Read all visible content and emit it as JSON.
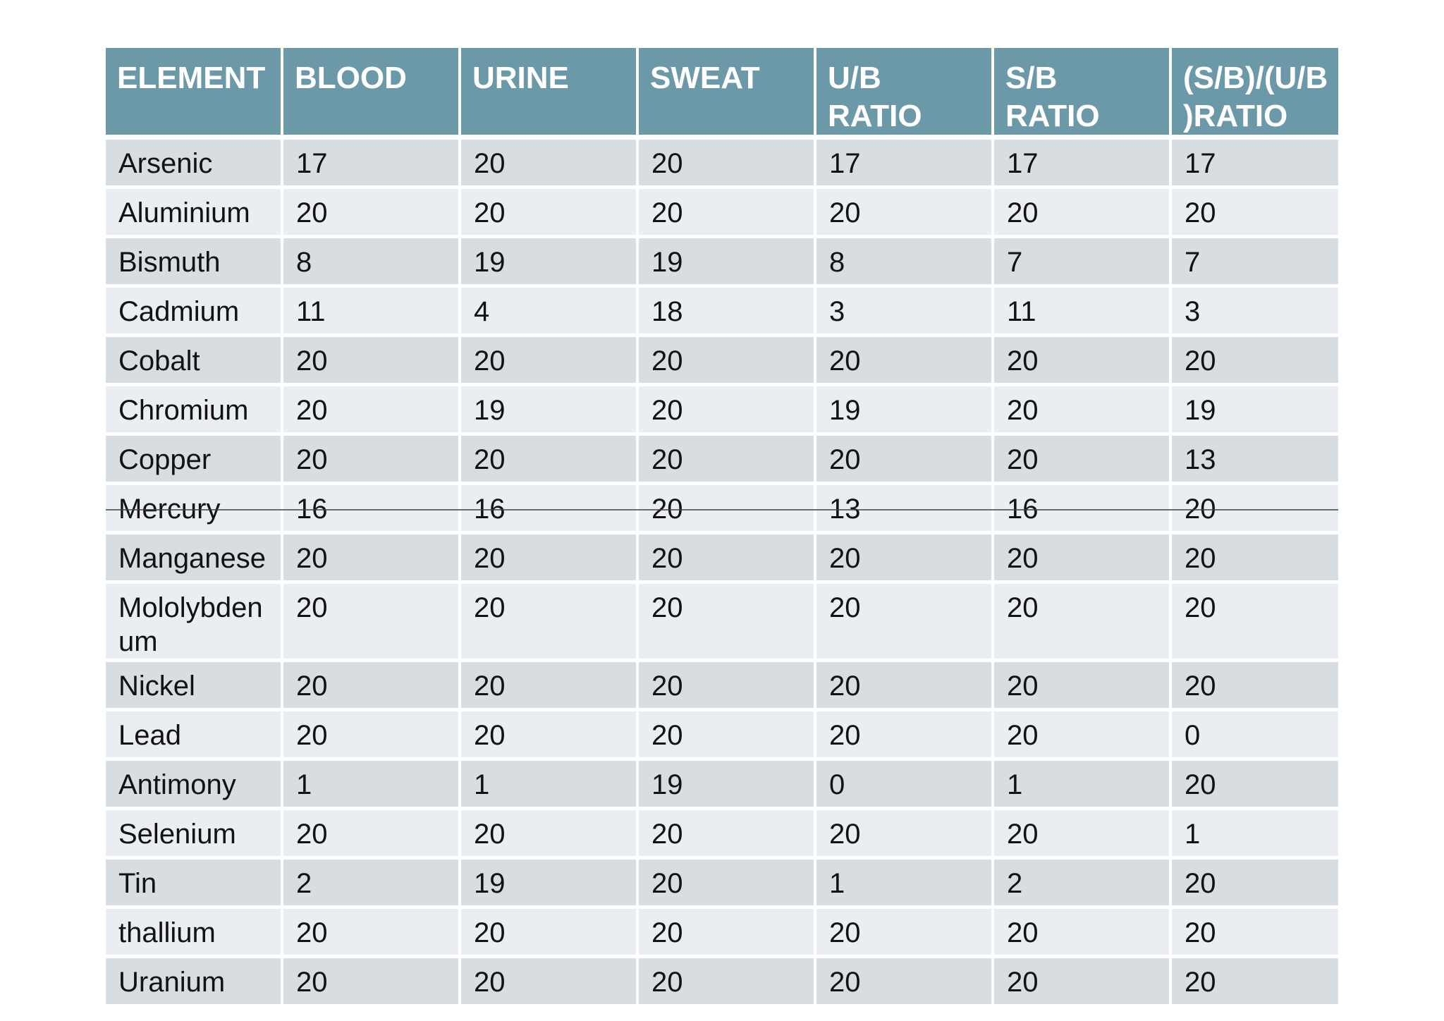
{
  "colors": {
    "header_bg": "#6b99a8",
    "header_text": "#ffffff",
    "row_dark": "#d7dde0",
    "row_light": "#eaedf2",
    "strike_line": "#3f3f3f",
    "page_bg": "#ffffff"
  },
  "table": {
    "headers": [
      "ELEMENT",
      "BLOOD",
      "URINE",
      "SWEAT",
      "U/B\nRATIO",
      "S/B\nRATIO",
      "(S/B)/(U/B\n)RATIO"
    ],
    "strikethrough_row": "Mercury",
    "rows": [
      {
        "element": "Arsenic",
        "blood": "17",
        "urine": "20",
        "sweat": "20",
        "ub_ratio": "17",
        "sb_ratio": "17",
        "sbub_ratio": "17"
      },
      {
        "element": "Aluminium",
        "blood": "20",
        "urine": "20",
        "sweat": "20",
        "ub_ratio": "20",
        "sb_ratio": "20",
        "sbub_ratio": "20"
      },
      {
        "element": "Bismuth",
        "blood": "8",
        "urine": "19",
        "sweat": "19",
        "ub_ratio": "8",
        "sb_ratio": "7",
        "sbub_ratio": "7"
      },
      {
        "element": "Cadmium",
        "blood": "11",
        "urine": "4",
        "sweat": "18",
        "ub_ratio": "3",
        "sb_ratio": "11",
        "sbub_ratio": "3"
      },
      {
        "element": "Cobalt",
        "blood": "20",
        "urine": "20",
        "sweat": "20",
        "ub_ratio": "20",
        "sb_ratio": "20",
        "sbub_ratio": "20"
      },
      {
        "element": "Chromium",
        "blood": "20",
        "urine": "19",
        "sweat": "20",
        "ub_ratio": "19",
        "sb_ratio": "20",
        "sbub_ratio": "19"
      },
      {
        "element": "Copper",
        "blood": "20",
        "urine": "20",
        "sweat": "20",
        "ub_ratio": "20",
        "sb_ratio": "20",
        "sbub_ratio": "13"
      },
      {
        "element": "Mercury",
        "blood": "16",
        "urine": "16",
        "sweat": "20",
        "ub_ratio": "13",
        "sb_ratio": "16",
        "sbub_ratio": "20"
      },
      {
        "element": "Manganese",
        "blood": "20",
        "urine": "20",
        "sweat": "20",
        "ub_ratio": "20",
        "sb_ratio": "20",
        "sbub_ratio": "20"
      },
      {
        "element": "Mololybdenum",
        "blood": "20",
        "urine": "20",
        "sweat": "20",
        "ub_ratio": "20",
        "sb_ratio": "20",
        "sbub_ratio": "20"
      },
      {
        "element": "Nickel",
        "blood": "20",
        "urine": "20",
        "sweat": "20",
        "ub_ratio": "20",
        "sb_ratio": "20",
        "sbub_ratio": "20"
      },
      {
        "element": "Lead",
        "blood": "20",
        "urine": "20",
        "sweat": "20",
        "ub_ratio": "20",
        "sb_ratio": "20",
        "sbub_ratio": "0"
      },
      {
        "element": "Antimony",
        "blood": "1",
        "urine": "1",
        "sweat": "19",
        "ub_ratio": "0",
        "sb_ratio": "1",
        "sbub_ratio": "20"
      },
      {
        "element": "Selenium",
        "blood": "20",
        "urine": "20",
        "sweat": "20",
        "ub_ratio": "20",
        "sb_ratio": "20",
        "sbub_ratio": "1"
      },
      {
        "element": "Tin",
        "blood": "2",
        "urine": "19",
        "sweat": "20",
        "ub_ratio": "1",
        "sb_ratio": "2",
        "sbub_ratio": "20"
      },
      {
        "element": "thallium",
        "blood": "20",
        "urine": "20",
        "sweat": "20",
        "ub_ratio": "20",
        "sb_ratio": "20",
        "sbub_ratio": "20"
      },
      {
        "element": "Uranium",
        "blood": "20",
        "urine": "20",
        "sweat": "20",
        "ub_ratio": "20",
        "sb_ratio": "20",
        "sbub_ratio": "20"
      }
    ]
  }
}
